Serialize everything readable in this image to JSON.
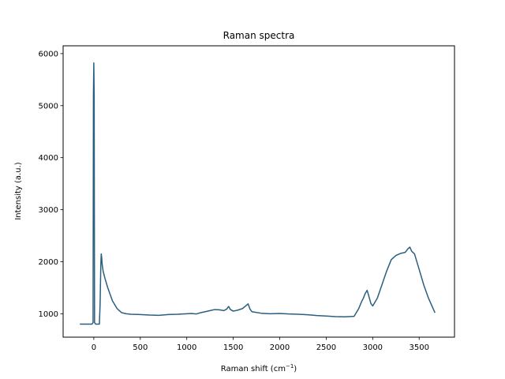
{
  "chart_data": {
    "type": "line",
    "title": "Raman spectra",
    "xlabel": "Raman shift (cm",
    "xlabel_sup": "−1",
    "xlabel_suffix": ")",
    "ylabel": "Intensity (a.u.)",
    "xlim": [
      -330,
      3880
    ],
    "ylim": [
      550,
      6150
    ],
    "xticks": [
      0,
      500,
      1000,
      1500,
      2000,
      2500,
      3000,
      3500
    ],
    "yticks": [
      1000,
      2000,
      3000,
      4000,
      5000,
      6000
    ],
    "grid": false,
    "line_color": "#2a5f7f",
    "series": [
      {
        "x": [
          -150,
          -20,
          -8,
          -4,
          0,
          4,
          8,
          20,
          60,
          68,
          75,
          80,
          85,
          90,
          100,
          120,
          150,
          200,
          250,
          300,
          350,
          400,
          500,
          600,
          700,
          800,
          900,
          1000,
          1050,
          1100,
          1150,
          1200,
          1250,
          1300,
          1350,
          1400,
          1430,
          1450,
          1470,
          1500,
          1550,
          1600,
          1640,
          1660,
          1680,
          1700,
          1800,
          1900,
          2000,
          2100,
          2200,
          2300,
          2400,
          2500,
          2600,
          2700,
          2800,
          2850,
          2880,
          2900,
          2920,
          2940,
          2960,
          2980,
          3000,
          3050,
          3100,
          3150,
          3200,
          3250,
          3300,
          3350,
          3380,
          3400,
          3420,
          3450,
          3500,
          3550,
          3600,
          3650,
          3670
        ],
        "y": [
          800,
          800,
          830,
          5200,
          5820,
          5200,
          830,
          800,
          800,
          1200,
          1900,
          2150,
          2080,
          1950,
          1820,
          1680,
          1500,
          1250,
          1100,
          1020,
          1000,
          990,
          985,
          975,
          970,
          985,
          990,
          1000,
          1005,
          995,
          1020,
          1040,
          1060,
          1080,
          1075,
          1060,
          1090,
          1140,
          1080,
          1050,
          1070,
          1100,
          1160,
          1190,
          1090,
          1040,
          1010,
          1000,
          1005,
          995,
          990,
          980,
          965,
          955,
          945,
          940,
          950,
          1100,
          1230,
          1300,
          1390,
          1450,
          1330,
          1200,
          1150,
          1300,
          1560,
          1820,
          2040,
          2120,
          2160,
          2180,
          2250,
          2280,
          2200,
          2150,
          1850,
          1550,
          1300,
          1100,
          1020
        ]
      }
    ]
  }
}
